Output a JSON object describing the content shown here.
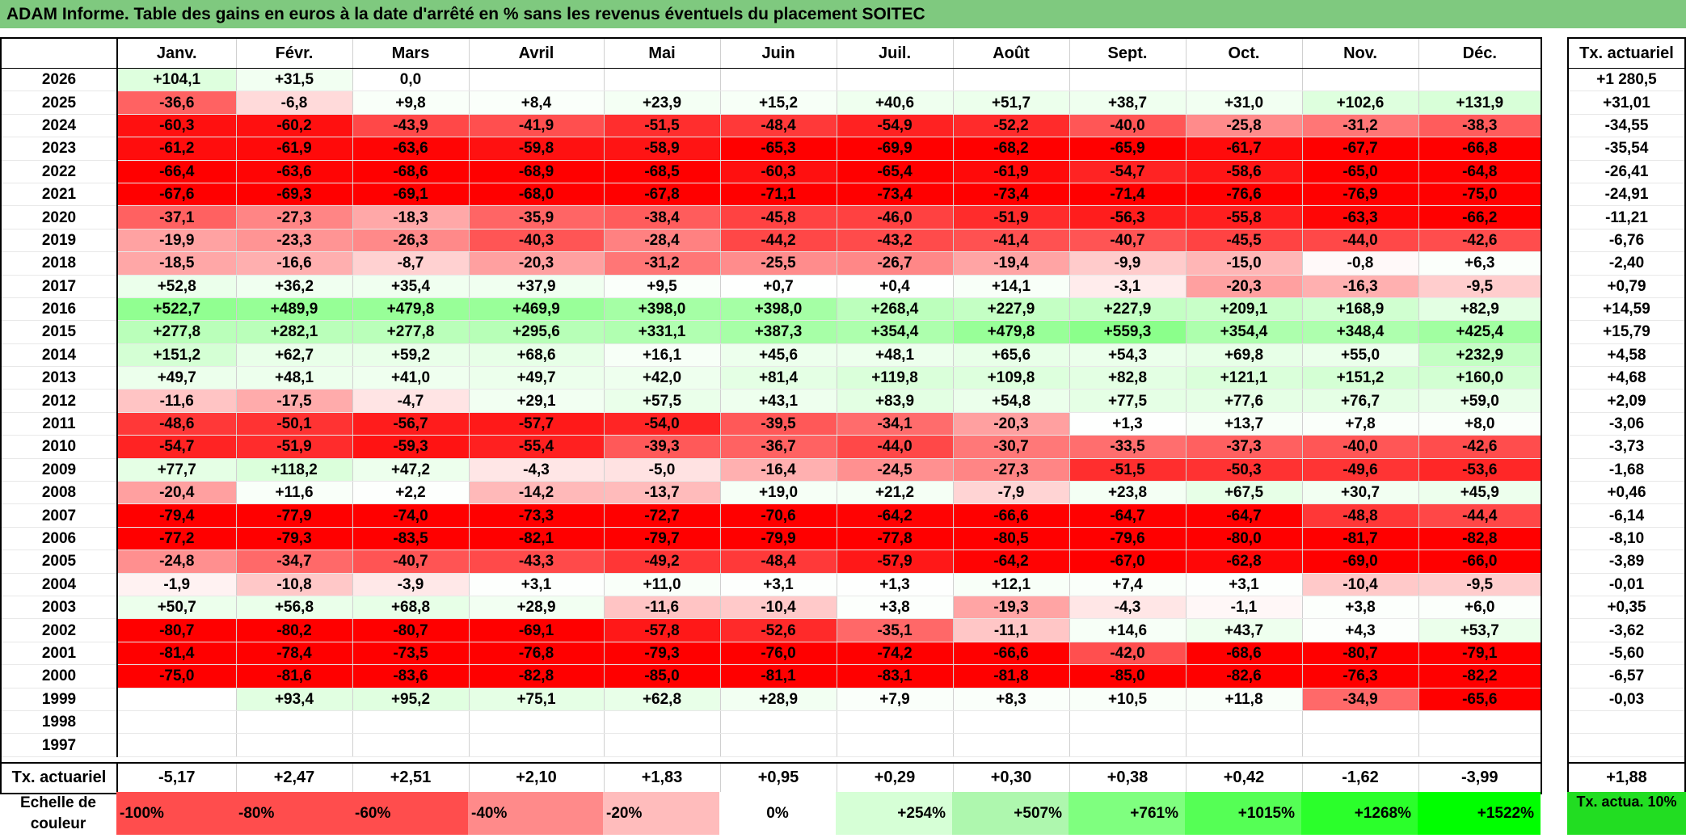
{
  "title": "ADAM Informe. Table des gains en euros à la date d'arrêté en % sans les revenus éventuels du placement SOITEC",
  "months": [
    "Janv.",
    "Févr.",
    "Mars",
    "Avril",
    "Mai",
    "Juin",
    "Juil.",
    "Août",
    "Sept.",
    "Oct.",
    "Nov.",
    "Déc."
  ],
  "right_header": "Tx. actuariel",
  "rows": [
    {
      "year": "2026",
      "values": [
        "+104,1",
        "+31,5",
        "0,0",
        "",
        "",
        "",
        "",
        "",
        "",
        "",
        "",
        ""
      ],
      "rate": "+1 280,5"
    },
    {
      "year": "2025",
      "values": [
        "-36,6",
        "-6,8",
        "+9,8",
        "+8,4",
        "+23,9",
        "+15,2",
        "+40,6",
        "+51,7",
        "+38,7",
        "+31,0",
        "+102,6",
        "+131,9"
      ],
      "rate": "+31,01"
    },
    {
      "year": "2024",
      "values": [
        "-60,3",
        "-60,2",
        "-43,9",
        "-41,9",
        "-51,5",
        "-48,4",
        "-54,9",
        "-52,2",
        "-40,0",
        "-25,8",
        "-31,2",
        "-38,3"
      ],
      "rate": "-34,55"
    },
    {
      "year": "2023",
      "values": [
        "-61,2",
        "-61,9",
        "-63,6",
        "-59,8",
        "-58,9",
        "-65,3",
        "-69,9",
        "-68,2",
        "-65,9",
        "-61,7",
        "-67,7",
        "-66,8"
      ],
      "rate": "-35,54"
    },
    {
      "year": "2022",
      "values": [
        "-66,4",
        "-63,6",
        "-68,6",
        "-68,9",
        "-68,5",
        "-60,3",
        "-65,4",
        "-61,9",
        "-54,7",
        "-58,6",
        "-65,0",
        "-64,8"
      ],
      "rate": "-26,41"
    },
    {
      "year": "2021",
      "values": [
        "-67,6",
        "-69,3",
        "-69,1",
        "-68,0",
        "-67,8",
        "-71,1",
        "-73,4",
        "-73,4",
        "-71,4",
        "-76,6",
        "-76,9",
        "-75,0"
      ],
      "rate": "-24,91"
    },
    {
      "year": "2020",
      "values": [
        "-37,1",
        "-27,3",
        "-18,3",
        "-35,9",
        "-38,4",
        "-45,8",
        "-46,0",
        "-51,9",
        "-56,3",
        "-55,8",
        "-63,3",
        "-66,2"
      ],
      "rate": "-11,21"
    },
    {
      "year": "2019",
      "values": [
        "-19,9",
        "-23,3",
        "-26,3",
        "-40,3",
        "-28,4",
        "-44,2",
        "-43,2",
        "-41,4",
        "-40,7",
        "-45,5",
        "-44,0",
        "-42,6"
      ],
      "rate": "-6,76"
    },
    {
      "year": "2018",
      "values": [
        "-18,5",
        "-16,6",
        "-8,7",
        "-20,3",
        "-31,2",
        "-25,5",
        "-26,7",
        "-19,4",
        "-9,9",
        "-15,0",
        "-0,8",
        "+6,3"
      ],
      "rate": "-2,40"
    },
    {
      "year": "2017",
      "values": [
        "+52,8",
        "+36,2",
        "+35,4",
        "+37,9",
        "+9,5",
        "+0,7",
        "+0,4",
        "+14,1",
        "-3,1",
        "-20,3",
        "-16,3",
        "-9,5"
      ],
      "rate": "+0,79"
    },
    {
      "year": "2016",
      "values": [
        "+522,7",
        "+489,9",
        "+479,8",
        "+469,9",
        "+398,0",
        "+398,0",
        "+268,4",
        "+227,9",
        "+227,9",
        "+209,1",
        "+168,9",
        "+82,9"
      ],
      "rate": "+14,59"
    },
    {
      "year": "2015",
      "values": [
        "+277,8",
        "+282,1",
        "+277,8",
        "+295,6",
        "+331,1",
        "+387,3",
        "+354,4",
        "+479,8",
        "+559,3",
        "+354,4",
        "+348,4",
        "+425,4"
      ],
      "rate": "+15,79"
    },
    {
      "year": "2014",
      "values": [
        "+151,2",
        "+62,7",
        "+59,2",
        "+68,6",
        "+16,1",
        "+45,6",
        "+48,1",
        "+65,6",
        "+54,3",
        "+69,8",
        "+55,0",
        "+232,9"
      ],
      "rate": "+4,58"
    },
    {
      "year": "2013",
      "values": [
        "+49,7",
        "+48,1",
        "+41,0",
        "+49,7",
        "+42,0",
        "+81,4",
        "+119,8",
        "+109,8",
        "+82,8",
        "+121,1",
        "+151,2",
        "+160,0"
      ],
      "rate": "+4,68"
    },
    {
      "year": "2012",
      "values": [
        "-11,6",
        "-17,5",
        "-4,7",
        "+29,1",
        "+57,5",
        "+43,1",
        "+83,9",
        "+54,8",
        "+77,5",
        "+77,6",
        "+76,7",
        "+59,0"
      ],
      "rate": "+2,09"
    },
    {
      "year": "2011",
      "values": [
        "-48,6",
        "-50,1",
        "-56,7",
        "-57,7",
        "-54,0",
        "-39,5",
        "-34,1",
        "-20,3",
        "+1,3",
        "+13,7",
        "+7,8",
        "+8,0"
      ],
      "rate": "-3,06"
    },
    {
      "year": "2010",
      "values": [
        "-54,7",
        "-51,9",
        "-59,3",
        "-55,4",
        "-39,3",
        "-36,7",
        "-44,0",
        "-30,7",
        "-33,5",
        "-37,3",
        "-40,0",
        "-42,6"
      ],
      "rate": "-3,73"
    },
    {
      "year": "2009",
      "values": [
        "+77,7",
        "+118,2",
        "+47,2",
        "-4,3",
        "-5,0",
        "-16,4",
        "-24,5",
        "-27,3",
        "-51,5",
        "-50,3",
        "-49,6",
        "-53,6"
      ],
      "rate": "-1,68"
    },
    {
      "year": "2008",
      "values": [
        "-20,4",
        "+11,6",
        "+2,2",
        "-14,2",
        "-13,7",
        "+19,0",
        "+21,2",
        "-7,9",
        "+23,8",
        "+67,5",
        "+30,7",
        "+45,9"
      ],
      "rate": "+0,46"
    },
    {
      "year": "2007",
      "values": [
        "-79,4",
        "-77,9",
        "-74,0",
        "-73,3",
        "-72,7",
        "-70,6",
        "-64,2",
        "-66,6",
        "-64,7",
        "-64,7",
        "-48,8",
        "-44,4"
      ],
      "rate": "-6,14"
    },
    {
      "year": "2006",
      "values": [
        "-77,2",
        "-79,3",
        "-83,5",
        "-82,1",
        "-79,7",
        "-79,9",
        "-77,8",
        "-80,5",
        "-79,6",
        "-80,0",
        "-81,7",
        "-82,8"
      ],
      "rate": "-8,10"
    },
    {
      "year": "2005",
      "values": [
        "-24,8",
        "-34,7",
        "-40,7",
        "-43,3",
        "-49,2",
        "-48,4",
        "-57,9",
        "-64,2",
        "-67,0",
        "-62,8",
        "-69,0",
        "-66,0"
      ],
      "rate": "-3,89"
    },
    {
      "year": "2004",
      "values": [
        "-1,9",
        "-10,8",
        "-3,9",
        "+3,1",
        "+11,0",
        "+3,1",
        "+1,3",
        "+12,1",
        "+7,4",
        "+3,1",
        "-10,4",
        "-9,5"
      ],
      "rate": "-0,01"
    },
    {
      "year": "2003",
      "values": [
        "+50,7",
        "+56,8",
        "+68,8",
        "+28,9",
        "-11,6",
        "-10,4",
        "+3,8",
        "-19,3",
        "-4,3",
        "-1,1",
        "+3,8",
        "+6,0"
      ],
      "rate": "+0,35"
    },
    {
      "year": "2002",
      "values": [
        "-80,7",
        "-80,2",
        "-80,7",
        "-69,1",
        "-57,8",
        "-52,6",
        "-35,1",
        "-11,1",
        "+14,6",
        "+43,7",
        "+4,3",
        "+53,7"
      ],
      "rate": "-3,62"
    },
    {
      "year": "2001",
      "values": [
        "-81,4",
        "-78,4",
        "-73,5",
        "-76,8",
        "-79,3",
        "-76,0",
        "-74,2",
        "-66,6",
        "-42,0",
        "-68,6",
        "-80,7",
        "-79,1"
      ],
      "rate": "-5,60"
    },
    {
      "year": "2000",
      "values": [
        "-75,0",
        "-81,6",
        "-83,6",
        "-82,8",
        "-85,0",
        "-81,1",
        "-83,1",
        "-81,8",
        "-85,0",
        "-82,6",
        "-76,3",
        "-82,2"
      ],
      "rate": "-6,57"
    },
    {
      "year": "1999",
      "values": [
        "",
        "+93,4",
        "+95,2",
        "+75,1",
        "+62,8",
        "+28,9",
        "+7,9",
        "+8,3",
        "+10,5",
        "+11,8",
        "-34,9",
        "-65,6"
      ],
      "rate": "-0,03"
    },
    {
      "year": "1998",
      "values": [
        "",
        "",
        "",
        "",
        "",
        "",
        "",
        "",
        "",
        "",
        "",
        ""
      ],
      "rate": ""
    },
    {
      "year": "1997",
      "values": [
        "",
        "",
        "",
        "",
        "",
        "",
        "",
        "",
        "",
        "",
        "",
        ""
      ],
      "rate": ""
    }
  ],
  "footer": {
    "label": "Tx. actuariel",
    "values": [
      "-5,17",
      "+2,47",
      "+2,51",
      "+2,10",
      "+1,83",
      "+0,95",
      "+0,29",
      "+0,30",
      "+0,38",
      "+0,42",
      "-1,62",
      "-3,99"
    ],
    "rate": "+1,88"
  },
  "scale": {
    "label": "Echelle de couleur",
    "items": [
      "-100%",
      "-80%",
      "-60%",
      "-40%",
      "-20%",
      "0%",
      "+254%",
      "+507%",
      "+761%",
      "+1015%",
      "+1268%",
      "+1522%"
    ],
    "colors": [
      "#ff4d4d",
      "#ff4d4d",
      "#ff4d4d",
      "#ff8a8a",
      "#ffbcbc",
      "#ffffff",
      "#d6ffd6",
      "#aef7ae",
      "#7fff7f",
      "#55ff55",
      "#2bff2b",
      "#00ff00"
    ],
    "right_label": "Tx. actua. 10%",
    "right_color": "#22dd22"
  },
  "colors": {
    "title_bg": "#7fc97f",
    "negative_strong": "#ff0000",
    "positive_strong": "#33ff33"
  }
}
